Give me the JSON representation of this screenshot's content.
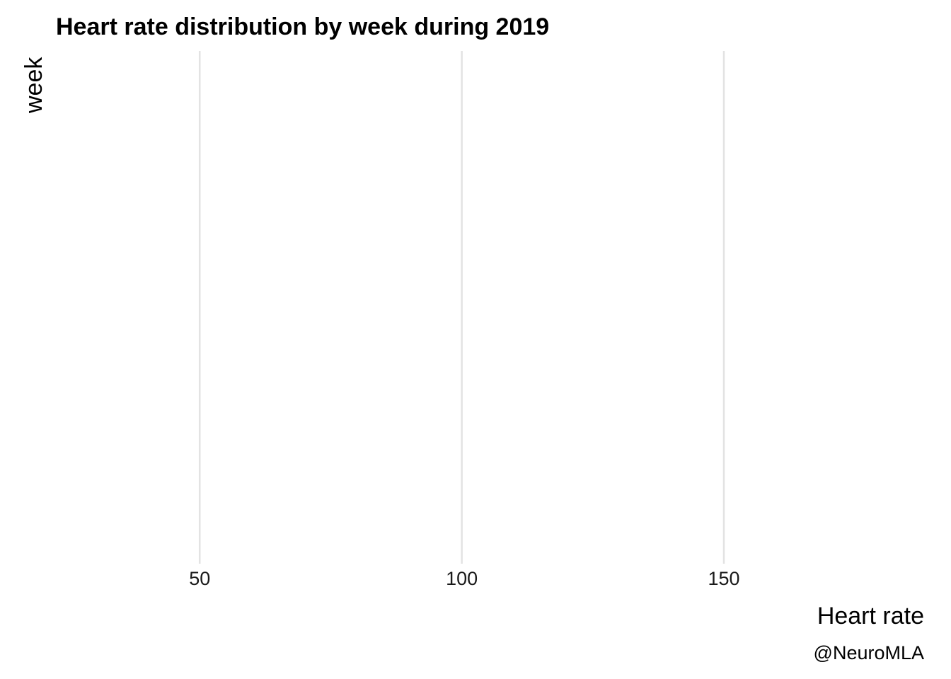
{
  "chart_data": {
    "type": "ridgeline",
    "title": "Heart rate distribution by week during 2019",
    "xlabel": "Heart rate",
    "ylabel": "week",
    "caption": "@NeuroMLA",
    "xlim": [
      22.7,
      188.2
    ],
    "x_ticks": [
      50,
      100,
      150
    ],
    "x_tick_labels": [
      "50",
      "100",
      "150"
    ],
    "series": [],
    "grid": {
      "vertical_major": true,
      "horizontal": false
    },
    "legend": "none",
    "colors": {
      "background": "#ffffff",
      "gridline": "#e3e3e3",
      "text": "#000000",
      "tick_text": "#1a1a1a"
    }
  }
}
